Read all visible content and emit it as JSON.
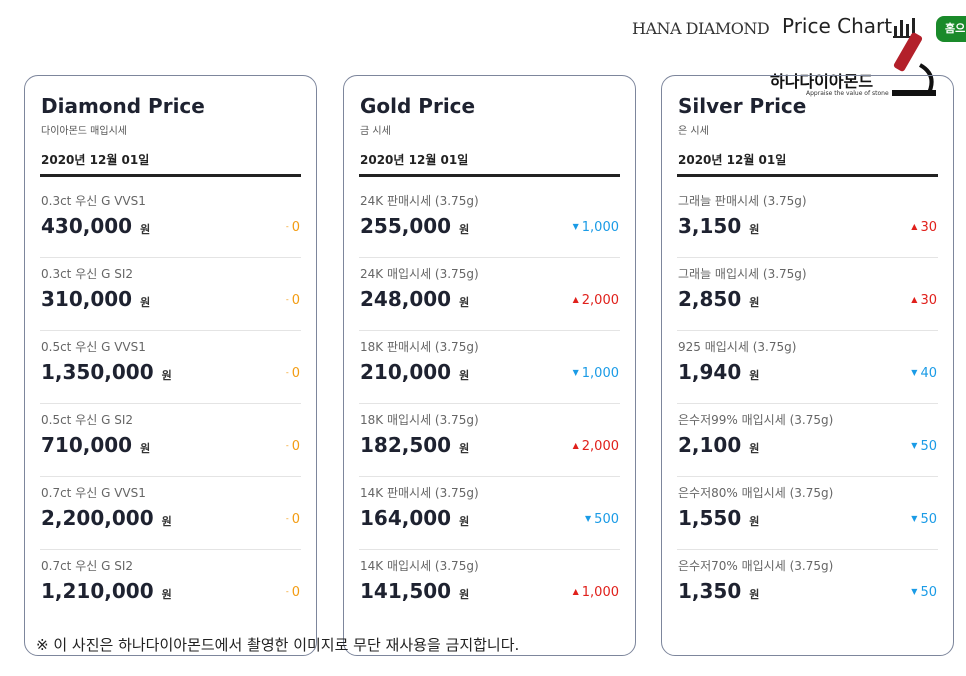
{
  "header": {
    "brand": "HANA DIAMOND",
    "title": "Price Chart",
    "home_button": "홈으"
  },
  "logo": {
    "name": "하나다이아몬드",
    "tagline": "Appraise the value of stone"
  },
  "unit": "원",
  "cards": [
    {
      "title": "Diamond Price",
      "subtitle": "다이아몬드 매입시세",
      "date": "2020년 12월 01일",
      "items": [
        {
          "label": "0.3ct 우신 G VVS1",
          "price": "430,000",
          "change": {
            "direction": "same",
            "text": "0"
          }
        },
        {
          "label": "0.3ct 우신 G SI2",
          "price": "310,000",
          "change": {
            "direction": "same",
            "text": "0"
          }
        },
        {
          "label": "0.5ct 우신 G VVS1",
          "price": "1,350,000",
          "change": {
            "direction": "same",
            "text": "0"
          }
        },
        {
          "label": "0.5ct 우신 G SI2",
          "price": "710,000",
          "change": {
            "direction": "same",
            "text": "0"
          }
        },
        {
          "label": "0.7ct 우신 G VVS1",
          "price": "2,200,000",
          "change": {
            "direction": "same",
            "text": "0"
          }
        },
        {
          "label": "0.7ct 우신 G SI2",
          "price": "1,210,000",
          "change": {
            "direction": "same",
            "text": "0"
          }
        }
      ]
    },
    {
      "title": "Gold Price",
      "subtitle": "금 시세",
      "date": "2020년 12월 01일",
      "items": [
        {
          "label": "24K 판매시세 (3.75g)",
          "price": "255,000",
          "change": {
            "direction": "down",
            "text": "1,000"
          }
        },
        {
          "label": "24K 매입시세 (3.75g)",
          "price": "248,000",
          "change": {
            "direction": "up",
            "text": "2,000"
          }
        },
        {
          "label": "18K 판매시세 (3.75g)",
          "price": "210,000",
          "change": {
            "direction": "down",
            "text": "1,000"
          }
        },
        {
          "label": "18K 매입시세 (3.75g)",
          "price": "182,500",
          "change": {
            "direction": "up",
            "text": "2,000"
          }
        },
        {
          "label": "14K 판매시세 (3.75g)",
          "price": "164,000",
          "change": {
            "direction": "down",
            "text": "500"
          }
        },
        {
          "label": "14K 매입시세 (3.75g)",
          "price": "141,500",
          "change": {
            "direction": "up",
            "text": "1,000"
          }
        }
      ]
    },
    {
      "title": "Silver Price",
      "subtitle": "은 시세",
      "date": "2020년 12월 01일",
      "items": [
        {
          "label": "그래늘 판매시세 (3.75g)",
          "price": "3,150",
          "change": {
            "direction": "up",
            "text": "30"
          }
        },
        {
          "label": "그래늘 매입시세 (3.75g)",
          "price": "2,850",
          "change": {
            "direction": "up",
            "text": "30"
          }
        },
        {
          "label": "925 매입시세 (3.75g)",
          "price": "1,940",
          "change": {
            "direction": "down",
            "text": "40"
          }
        },
        {
          "label": "은수저99% 매입시세 (3.75g)",
          "price": "2,100",
          "change": {
            "direction": "down",
            "text": "50"
          }
        },
        {
          "label": "은수저80% 매입시세 (3.75g)",
          "price": "1,550",
          "change": {
            "direction": "down",
            "text": "50"
          }
        },
        {
          "label": "은수저70% 매입시세 (3.75g)",
          "price": "1,350",
          "change": {
            "direction": "down",
            "text": "50"
          }
        }
      ]
    }
  ],
  "footer_note": "※ 이 사진은 하나다이아몬드에서 촬영한 이미지로 무단 재사용을 금지합니다."
}
